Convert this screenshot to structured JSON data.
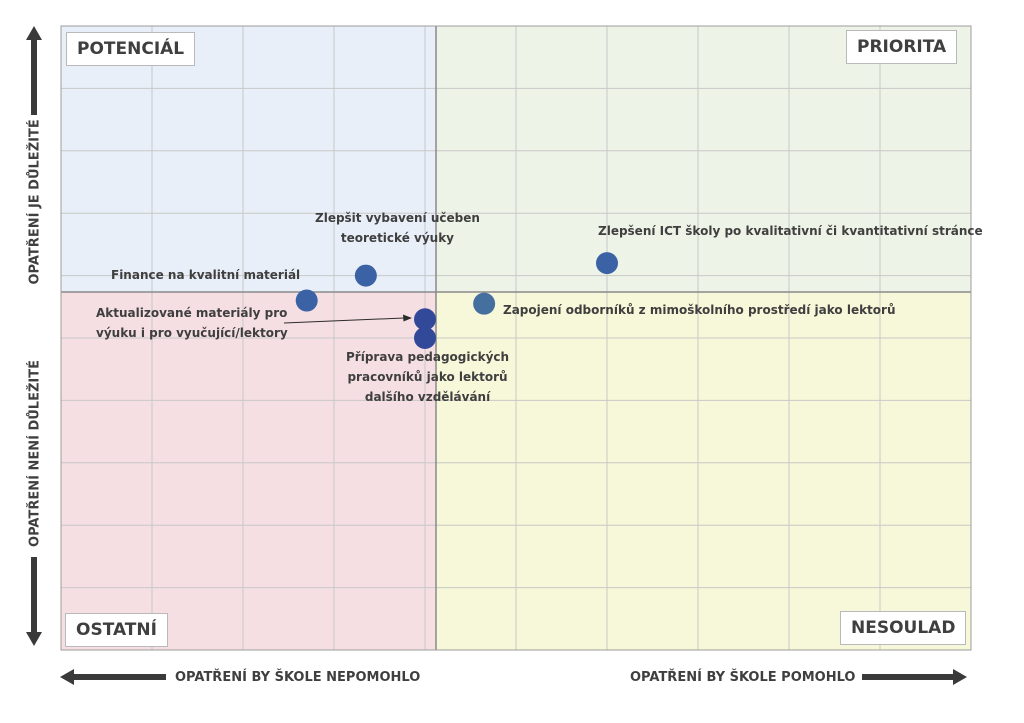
{
  "quadrants": {
    "top_left": "POTENCIÁL",
    "top_right": "PRIORITA",
    "bottom_left": "OSTATNÍ",
    "bottom_right": "NESOULAD"
  },
  "axes": {
    "x_low": "OPATŘENÍ BY ŠKOLE NEPOMOHLO",
    "x_high": "OPATŘENÍ BY ŠKOLE POMOHLO",
    "y_high": "OPATŘENÍ JE DŮLEŽITÉ",
    "y_low": "OPATŘENÍ NENÍ DŮLEŽITÉ"
  },
  "colors": {
    "top_left_bg": "#e9eff8",
    "top_right_bg": "#eef3e8",
    "bottom_left_bg": "#f5dfe2",
    "bottom_right_bg": "#f7f7d9",
    "point": "#3a62a5",
    "point_dark": "#32499a",
    "grid": "#c8c8c8"
  },
  "chart_data": {
    "type": "scatter",
    "title": "",
    "xlabel": "",
    "ylabel": "",
    "xlim": [
      0,
      10
    ],
    "ylim": [
      0,
      10
    ],
    "grid": true,
    "points": [
      {
        "label": "Finance na kvalitní materiál",
        "x": 2.7,
        "y": 5.6
      },
      {
        "label": "Zlepšit vybavení učeben teoretické výuky",
        "x": 3.35,
        "y": 6.0
      },
      {
        "label": "Zlepšení ICT školy po kvalitativní či kvantitativní stránce",
        "x": 6.0,
        "y": 6.2
      },
      {
        "label": "Zapojení odborníků z mimoškolního prostředí jako lektorů",
        "x": 4.65,
        "y": 5.55
      },
      {
        "label": "Aktualizované materiály pro výuku i pro vyučující/lektory",
        "x": 4.0,
        "y": 5.3
      },
      {
        "label": "Příprava pedagogických pracovníků jako lektorů dalšího vzdělávání",
        "x": 4.0,
        "y": 5.0
      }
    ]
  },
  "point_labels": {
    "p0": [
      "Finance na kvalitní materiál"
    ],
    "p1": [
      "Zlepšit vybavení učeben",
      "teoretické výuky"
    ],
    "p2": [
      "Zlepšení ICT školy po kvalitativní či kvantitativní stránce"
    ],
    "p3": [
      "Zapojení odborníků z mimoškolního prostředí jako lektorů"
    ],
    "p4": [
      "Aktualizované materiály pro",
      "výuku i pro vyučující/lektory"
    ],
    "p5": [
      "Příprava pedagogických",
      "pracovníků jako lektorů",
      "dalšího vzdělávání"
    ]
  }
}
